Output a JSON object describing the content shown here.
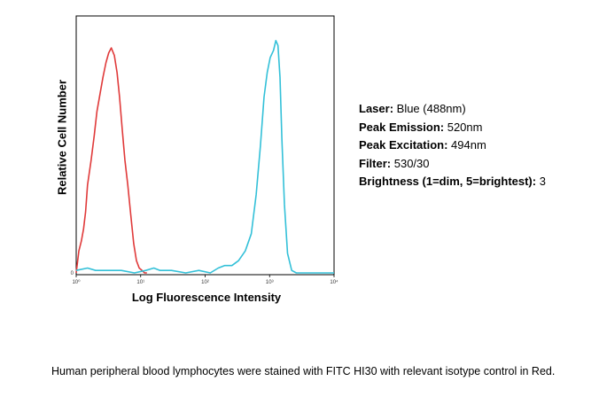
{
  "chart_data": {
    "type": "area",
    "xlabel": "Log Fluorescence Intensity",
    "ylabel": "Relative Cell Number",
    "xscale": "log",
    "xlim": [
      1,
      10000
    ],
    "ylim": [
      0,
      100
    ],
    "xticks": [
      {
        "value": 1,
        "label": "10⁰"
      },
      {
        "value": 10,
        "label": "10¹"
      },
      {
        "value": 100,
        "label": "10²"
      },
      {
        "value": 1000,
        "label": "10³"
      },
      {
        "value": 10000,
        "label": "10⁴"
      }
    ],
    "yticks": [
      {
        "value": 0,
        "label": "0"
      }
    ],
    "series": [
      {
        "color": "#e03a3a",
        "x": [
          1.0,
          1.1,
          1.2,
          1.3,
          1.4,
          1.5,
          1.7,
          1.9,
          2.1,
          2.3,
          2.6,
          2.9,
          3.2,
          3.5,
          3.9,
          4.3,
          4.7,
          5.2,
          5.7,
          6.3,
          7.0,
          7.8,
          8.6,
          9.5,
          10.5,
          11.5,
          12.5
        ],
        "values": [
          0,
          9,
          13,
          18,
          25,
          36,
          46,
          56,
          66,
          72,
          80,
          86,
          90,
          92,
          89,
          82,
          72,
          58,
          46,
          36,
          24,
          12,
          5,
          2,
          1,
          0,
          0
        ]
      },
      {
        "color": "#33c0d8",
        "x": [
          1.0,
          1.5,
          2,
          3,
          5,
          8,
          12,
          16,
          20,
          30,
          50,
          80,
          120,
          160,
          200,
          260,
          330,
          420,
          520,
          620,
          720,
          820,
          920,
          1020,
          1150,
          1250,
          1350,
          1450,
          1550,
          1700,
          1900,
          2200,
          2600,
          3000,
          10000
        ],
        "values": [
          1,
          2,
          1,
          1,
          1,
          0,
          1,
          2,
          1,
          1,
          0,
          1,
          0,
          2,
          3,
          3,
          5,
          9,
          16,
          32,
          52,
          72,
          82,
          88,
          91,
          95,
          93,
          80,
          55,
          28,
          8,
          1,
          0,
          0,
          0
        ]
      }
    ]
  },
  "info": {
    "laser_label": "Laser:",
    "laser_value": " Blue (488nm)",
    "emission_label": "Peak Emission:",
    "emission_value": " 520nm",
    "excitation_label": "Peak Excitation:",
    "excitation_value": " 494nm",
    "filter_label": "Filter:",
    "filter_value": " 530/30",
    "brightness_label": "Brightness (1=dim, 5=brightest):",
    "brightness_value": " 3"
  },
  "caption": "Human peripheral blood lymphocytes were stained with FITC HI30 with relevant isotype control in Red."
}
